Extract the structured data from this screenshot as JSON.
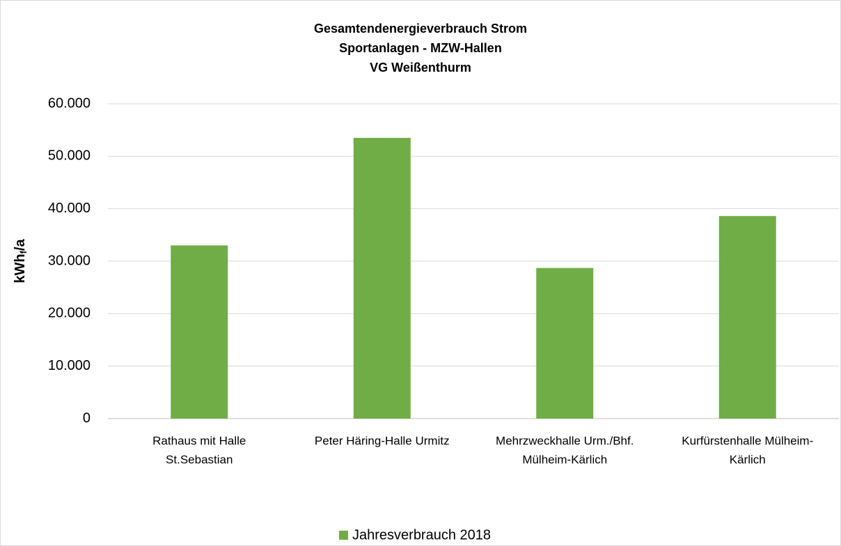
{
  "chart_data": {
    "type": "bar",
    "title": [
      "Gesamtendenergieverbrauch Strom",
      "Sportanlagen - MZW-Hallen",
      "VG Weißenthurm"
    ],
    "ylabel": [
      "kWh",
      "f",
      "/a"
    ],
    "categories": [
      [
        "Rathaus mit Halle",
        "St.Sebastian"
      ],
      [
        "Peter Häring-Halle Urmitz"
      ],
      [
        "Mehrzweckhalle Urm./Bhf.",
        "Mülheim-Kärlich"
      ],
      [
        "Kurfürstenhalle Mülheim-",
        "Kärlich"
      ]
    ],
    "series": [
      {
        "name": "Jahresverbrauch 2018",
        "color": "#70ad47",
        "values": [
          33000,
          53500,
          28700,
          38600
        ]
      }
    ],
    "ylim": [
      0,
      60000
    ],
    "yticks": [
      0,
      {
        "value": 10000,
        "label": "10.000"
      },
      {
        "value": 20000,
        "label": "20.000"
      },
      {
        "value": 30000,
        "label": "30.000"
      },
      {
        "value": 40000,
        "label": "40.000"
      },
      {
        "value": 50000,
        "label": "50.000"
      },
      {
        "value": 60000,
        "label": "60.000"
      }
    ],
    "grid": true,
    "legend": "bottom"
  }
}
